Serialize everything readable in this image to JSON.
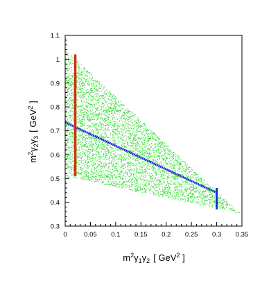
{
  "chart_data": {
    "type": "scatter",
    "xlim": [
      0,
      0.35
    ],
    "ylim": [
      0.3,
      1.1
    ],
    "x_ticks": [
      0,
      0.05,
      0.1,
      0.15,
      0.2,
      0.25,
      0.3,
      0.35
    ],
    "x_tick_labels": [
      "0",
      "0.05",
      "0.1",
      "0.15",
      "0.2",
      "0.25",
      "0.3",
      "0.35"
    ],
    "y_ticks": [
      0.3,
      0.4,
      0.5,
      0.6,
      0.7,
      0.8,
      0.9,
      1.0,
      1.1
    ],
    "y_tick_labels": [
      "0.3",
      "0.4",
      "0.5",
      "0.6",
      "0.7",
      "0.8",
      "0.9",
      "1",
      "1.1"
    ],
    "xlabel": {
      "base": "m",
      "sup1": "2",
      "g1": "γ",
      "sub1": "1",
      "g2": "γ",
      "sub2": "2",
      "unit_open": "[ GeV",
      "unit_sup": "2",
      "unit_close": " ]"
    },
    "ylabel": {
      "base": "m",
      "sup1": "2",
      "g1": "γ",
      "sub1": "2",
      "g2": "γ",
      "sub2": "3",
      "unit_open": "[ GeV",
      "unit_sup": "2",
      "unit_close": " ]"
    },
    "grid": false,
    "colors": {
      "scatter": "#33dd33",
      "blue_band": "#1a2fd6",
      "red_band": "#cc3311",
      "axis": "#000000"
    },
    "region": {
      "vertices": [
        [
          0,
          1.04
        ],
        [
          0,
          0.51
        ],
        [
          0.345,
          0.355
        ]
      ]
    },
    "blue_band": {
      "points": [
        [
          0,
          0.735
        ],
        [
          0.3,
          0.44
        ]
      ],
      "vertical_segment": {
        "x": 0.3,
        "y": [
          0.37,
          0.46
        ]
      }
    },
    "red_band": {
      "x": 0.02,
      "y": [
        0.51,
        1.02
      ]
    }
  }
}
